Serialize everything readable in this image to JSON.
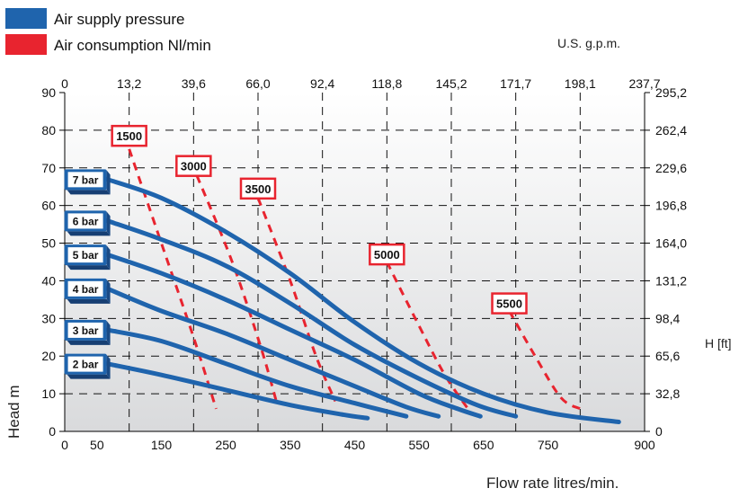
{
  "legend": {
    "items": [
      {
        "label": "Air supply pressure",
        "color": "#1f64ad"
      },
      {
        "label": "Air consumption Nl/min",
        "color": "#e8242f"
      }
    ]
  },
  "chart_data": {
    "type": "line",
    "xlabel": "Flow rate litres/min.",
    "ylabel": "Head m",
    "x2label": "U.S. g.p.m.",
    "y2label": "H [ft]",
    "xlim": [
      0,
      900
    ],
    "ylim": [
      0,
      90
    ],
    "x_ticks": [
      0,
      50,
      150,
      250,
      350,
      450,
      550,
      650,
      750,
      900
    ],
    "y_ticks": [
      0,
      10,
      20,
      30,
      40,
      50,
      60,
      70,
      80,
      90
    ],
    "x2_ticks": [
      {
        "x": 0,
        "label": "0"
      },
      {
        "x": 100,
        "label": "13,2"
      },
      {
        "x": 200,
        "label": "39,6"
      },
      {
        "x": 300,
        "label": "66,0"
      },
      {
        "x": 400,
        "label": "92,4"
      },
      {
        "x": 500,
        "label": "118,8"
      },
      {
        "x": 600,
        "label": "145,2"
      },
      {
        "x": 700,
        "label": "171,7"
      },
      {
        "x": 800,
        "label": "198,1"
      },
      {
        "x": 900,
        "label": "237,7"
      }
    ],
    "y2_ticks": [
      {
        "y": 0,
        "label": "0"
      },
      {
        "y": 10,
        "label": "32,8"
      },
      {
        "y": 20,
        "label": "65,6"
      },
      {
        "y": 30,
        "label": "98,4"
      },
      {
        "y": 40,
        "label": "131,2"
      },
      {
        "y": 50,
        "label": "164,0"
      },
      {
        "y": 60,
        "label": "196,8"
      },
      {
        "y": 70,
        "label": "229,6"
      },
      {
        "y": 80,
        "label": "262,4"
      },
      {
        "y": 90,
        "label": "295,2"
      }
    ],
    "gridlines_x": [
      100,
      200,
      300,
      400,
      500,
      600,
      700,
      800
    ],
    "gridlines_y": [
      10,
      20,
      30,
      40,
      50,
      60,
      70,
      80
    ],
    "grid": true,
    "series": [
      {
        "name": "2 bar",
        "color": "#1f64ad",
        "points": [
          [
            65,
            18
          ],
          [
            150,
            15
          ],
          [
            250,
            11
          ],
          [
            350,
            7
          ],
          [
            430,
            4.5
          ],
          [
            470,
            3.5
          ]
        ]
      },
      {
        "name": "3 bar",
        "color": "#1f64ad",
        "points": [
          [
            65,
            27
          ],
          [
            150,
            24
          ],
          [
            250,
            18
          ],
          [
            350,
            12
          ],
          [
            450,
            7.5
          ],
          [
            530,
            4
          ]
        ]
      },
      {
        "name": "4 bar",
        "color": "#1f64ad",
        "points": [
          [
            65,
            38
          ],
          [
            150,
            32
          ],
          [
            250,
            26
          ],
          [
            350,
            19
          ],
          [
            450,
            12
          ],
          [
            530,
            6.5
          ],
          [
            580,
            4
          ]
        ]
      },
      {
        "name": "5 bar",
        "color": "#1f64ad",
        "points": [
          [
            65,
            47
          ],
          [
            150,
            42
          ],
          [
            250,
            35
          ],
          [
            350,
            27
          ],
          [
            450,
            19
          ],
          [
            550,
            10
          ],
          [
            610,
            6
          ],
          [
            645,
            4
          ]
        ]
      },
      {
        "name": "6 bar",
        "color": "#1f64ad",
        "points": [
          [
            65,
            56
          ],
          [
            150,
            51
          ],
          [
            250,
            44
          ],
          [
            350,
            34
          ],
          [
            450,
            23
          ],
          [
            550,
            14
          ],
          [
            640,
            7
          ],
          [
            700,
            4
          ]
        ]
      },
      {
        "name": "7 bar",
        "color": "#1f64ad",
        "points": [
          [
            65,
            67
          ],
          [
            150,
            62
          ],
          [
            250,
            53
          ],
          [
            350,
            42
          ],
          [
            450,
            29
          ],
          [
            550,
            18
          ],
          [
            650,
            10
          ],
          [
            750,
            5
          ],
          [
            860,
            2.5
          ]
        ]
      }
    ],
    "consumption_lines": [
      {
        "label": "1500",
        "color": "#e8242f",
        "points": [
          [
            100,
            75
          ],
          [
            150,
            50
          ],
          [
            200,
            25
          ],
          [
            235,
            6
          ]
        ],
        "label_at": [
          100,
          78.5
        ]
      },
      {
        "label": "3000",
        "color": "#e8242f",
        "points": [
          [
            205,
            68
          ],
          [
            260,
            45
          ],
          [
            305,
            22
          ],
          [
            330,
            7
          ]
        ],
        "label_at": [
          200,
          70.5
        ]
      },
      {
        "label": "3500",
        "color": "#e8242f",
        "points": [
          [
            300,
            62
          ],
          [
            350,
            40
          ],
          [
            390,
            20
          ],
          [
            420,
            8
          ]
        ],
        "label_at": [
          300,
          64.5
        ]
      },
      {
        "label": "5000",
        "color": "#e8242f",
        "points": [
          [
            500,
            45
          ],
          [
            550,
            28
          ],
          [
            590,
            15
          ],
          [
            630,
            5
          ]
        ],
        "label_at": [
          500,
          47
        ]
      },
      {
        "label": "5500",
        "color": "#e8242f",
        "points": [
          [
            690,
            32
          ],
          [
            730,
            20
          ],
          [
            770,
            9
          ],
          [
            800,
            6
          ]
        ],
        "label_at": [
          690,
          34
        ]
      }
    ]
  }
}
